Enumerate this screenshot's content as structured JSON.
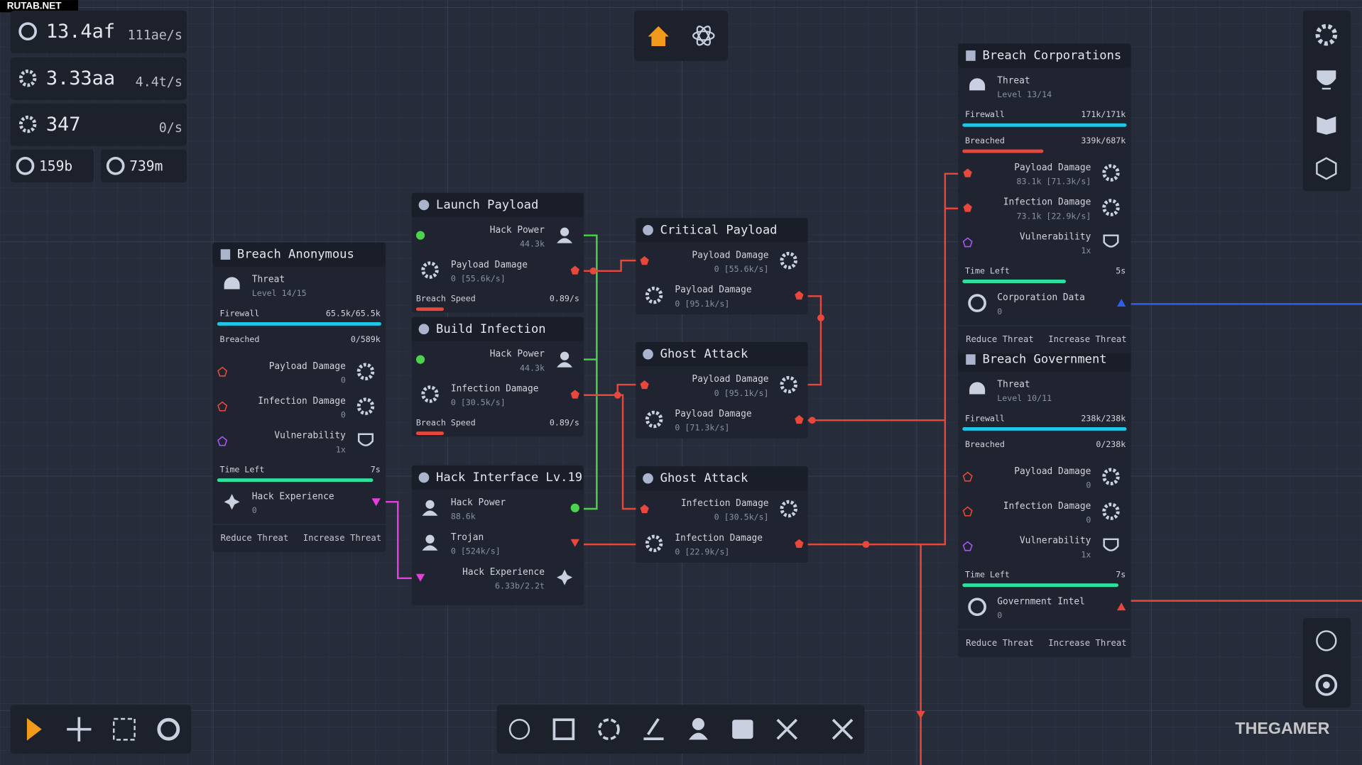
{
  "watermarks": {
    "top": "RUTAB.NET",
    "bottom": "THEGAMER"
  },
  "resources": [
    {
      "amount": "13.4af",
      "rate": "111ae/s"
    },
    {
      "amount": "3.33aa",
      "rate": "4.4t/s"
    },
    {
      "amount": "347",
      "rate": "0/s"
    }
  ],
  "counters": [
    "159b",
    "739m"
  ],
  "breach_nodes": [
    {
      "title": "Breach Anonymous",
      "threat": {
        "label": "Threat",
        "level": "Level 14/15"
      },
      "firewall": {
        "label": "Firewall",
        "value": "65.5k/65.5k"
      },
      "breached": {
        "label": "Breached",
        "value": "0/589k"
      },
      "stats": [
        {
          "label": "Payload Damage",
          "value": "0"
        },
        {
          "label": "Infection Damage",
          "value": "0"
        },
        {
          "label": "Vulnerability",
          "value": "1x"
        }
      ],
      "time_left": {
        "label": "Time Left",
        "value": "7s"
      },
      "output": {
        "label": "Hack Experience",
        "value": "0"
      },
      "buttons": [
        "Reduce Threat",
        "Increase Threat"
      ]
    },
    {
      "title": "Breach Government",
      "threat": {
        "label": "Threat",
        "level": "Level 10/11"
      },
      "firewall": {
        "label": "Firewall",
        "value": "238k/238k"
      },
      "breached": {
        "label": "Breached",
        "value": "0/238k"
      },
      "stats": [
        {
          "label": "Payload Damage",
          "value": "0"
        },
        {
          "label": "Infection Damage",
          "value": "0"
        },
        {
          "label": "Vulnerability",
          "value": "1x"
        }
      ],
      "time_left": {
        "label": "Time Left",
        "value": "7s"
      },
      "output": {
        "label": "Government Intel",
        "value": "0"
      },
      "buttons": [
        "Reduce Threat",
        "Increase Threat"
      ]
    },
    {
      "title": "Breach Corporations",
      "threat": {
        "label": "Threat",
        "level": "Level 13/14"
      },
      "firewall": {
        "label": "Firewall",
        "value": "171k/171k"
      },
      "breached": {
        "label": "Breached",
        "value": "339k/687k"
      },
      "stats": [
        {
          "label": "Payload Damage",
          "value": "83.1k [71.3k/s]"
        },
        {
          "label": "Infection Damage",
          "value": "73.1k [22.9k/s]"
        },
        {
          "label": "Vulnerability",
          "value": "1x"
        }
      ],
      "time_left": {
        "label": "Time Left",
        "value": "5s"
      },
      "output": {
        "label": "Corporation Data",
        "value": "0"
      },
      "buttons": [
        "Reduce Threat",
        "Increase Threat"
      ]
    }
  ],
  "process_nodes": [
    {
      "title": "Launch Payload",
      "rows": [
        {
          "label": "Hack Power",
          "value": "44.3k"
        },
        {
          "label": "Payload Damage",
          "value": "0 [55.6k/s]"
        }
      ],
      "footer": {
        "label": "Breach Speed",
        "value": "0.89/s"
      }
    },
    {
      "title": "Build Infection",
      "rows": [
        {
          "label": "Hack Power",
          "value": "44.3k"
        },
        {
          "label": "Infection Damage",
          "value": "0 [30.5k/s]"
        }
      ],
      "footer": {
        "label": "Breach Speed",
        "value": "0.89/s"
      }
    },
    {
      "title": "Hack Interface Lv.19",
      "rows": [
        {
          "label": "Hack Power",
          "value": "88.6k"
        },
        {
          "label": "Trojan",
          "value": "0 [524k/s]"
        },
        {
          "label": "Hack Experience",
          "value": "6.33b/2.2t"
        }
      ]
    },
    {
      "title": "Critical Payload",
      "rows": [
        {
          "label": "Payload Damage",
          "value": "0 [55.6k/s]"
        },
        {
          "label": "Payload Damage",
          "value": "0 [95.1k/s]"
        }
      ]
    },
    {
      "title": "Ghost Attack",
      "rows": [
        {
          "label": "Payload Damage",
          "value": "0 [95.1k/s]"
        },
        {
          "label": "Payload Damage",
          "value": "0 [71.3k/s]"
        }
      ]
    },
    {
      "title": "Ghost Attack",
      "rows": [
        {
          "label": "Infection Damage",
          "value": "0 [30.5k/s]"
        },
        {
          "label": "Infection Damage",
          "value": "0 [22.9k/s]"
        }
      ]
    }
  ]
}
